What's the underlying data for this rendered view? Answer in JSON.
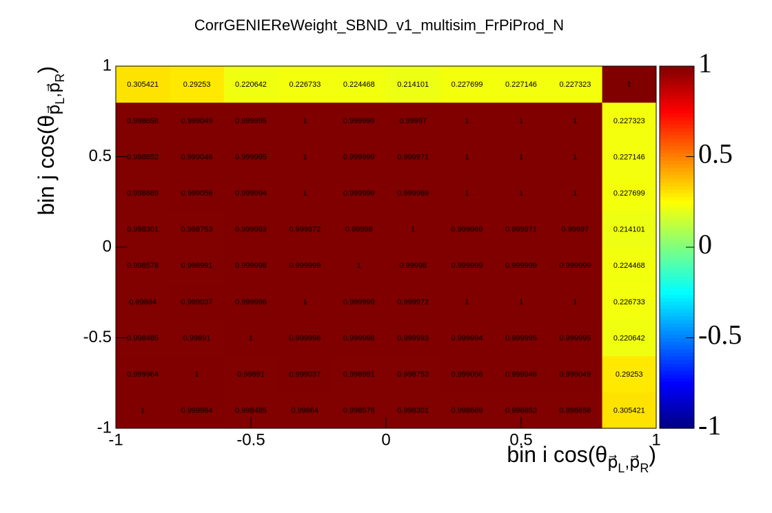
{
  "chart_data": {
    "type": "heatmap",
    "title": "CorrGENIEReWeight_SBND_v1_multisim_FrPiProd_N",
    "x_label": [
      "bin i cos(θ",
      "p⃗",
      "L",
      ",p⃗",
      "R",
      ")"
    ],
    "y_label": [
      "bin j cos(θ",
      "p⃗",
      "L",
      ",p⃗",
      "R",
      ")"
    ],
    "xlim": [
      -1,
      1
    ],
    "ylim": [
      -1,
      1
    ],
    "xticks": [
      -1,
      -0.5,
      0,
      0.5,
      1
    ],
    "yticks": [
      -1,
      -0.5,
      0,
      0.5,
      1
    ],
    "zlim": [
      -1,
      1
    ],
    "zticks": [
      -1,
      -0.5,
      0,
      0.5,
      1
    ],
    "colormap": "jet",
    "z": [
      [
        1,
        0.999964,
        0.998485,
        0.99864,
        0.998578,
        0.998301,
        0.998669,
        0.998652,
        0.998658,
        0.305421
      ],
      [
        0.999964,
        1,
        0.99891,
        0.999037,
        0.998991,
        0.998753,
        0.999056,
        0.999046,
        0.999049,
        0.29253
      ],
      [
        0.998485,
        0.99891,
        1,
        0.999996,
        0.999998,
        0.999993,
        0.999994,
        0.999995,
        0.999995,
        0.220642
      ],
      [
        0.99864,
        0.999037,
        0.999996,
        1,
        0.999999,
        0.999972,
        1,
        1,
        1,
        0.226733
      ],
      [
        0.998578,
        0.998991,
        0.999998,
        0.999999,
        1,
        0.99998,
        0.999999,
        0.999999,
        0.999999,
        0.224468
      ],
      [
        0.998301,
        0.998753,
        0.999993,
        0.999972,
        0.99998,
        1,
        0.999969,
        0.999971,
        0.99997,
        0.214101
      ],
      [
        0.998669,
        0.999056,
        0.999994,
        1,
        0.999999,
        0.999969,
        1,
        1,
        1,
        0.227699
      ],
      [
        0.998652,
        0.999046,
        0.999995,
        1,
        0.999999,
        0.999971,
        1,
        1,
        1,
        0.227146
      ],
      [
        0.998658,
        0.999049,
        0.999995,
        1,
        0.999999,
        0.99997,
        1,
        1,
        1,
        0.227323
      ],
      [
        0.305421,
        0.29253,
        0.220642,
        0.226733,
        0.224468,
        0.214101,
        0.227699,
        0.227146,
        0.227323,
        1
      ]
    ]
  }
}
